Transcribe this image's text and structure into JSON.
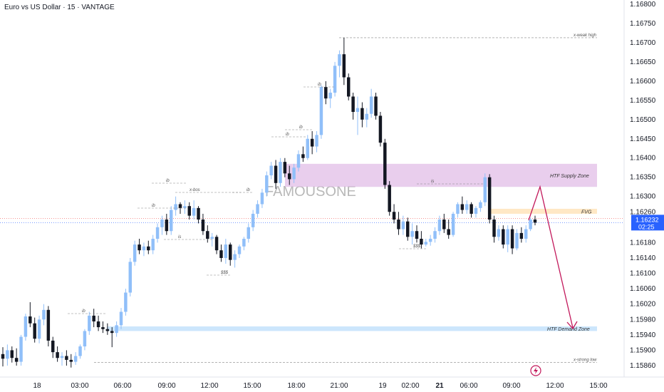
{
  "chart_data": {
    "type": "candlestick",
    "title": "Euro vs US Dollar · 15 · VANTAGE",
    "watermark": "FAMOUSONE",
    "y_ticks": [
      "1.16800",
      "1.16750",
      "1.16700",
      "1.16650",
      "1.16600",
      "1.16550",
      "1.16500",
      "1.16450",
      "1.16400",
      "1.16350",
      "1.16300",
      "1.16260",
      "1.16180",
      "1.16140",
      "1.16100",
      "1.16060",
      "1.16020",
      "1.15980",
      "1.15940",
      "1.15900",
      "1.15860"
    ],
    "x_ticks": [
      {
        "label": "18",
        "bold": false
      },
      {
        "label": "03:00",
        "bold": false
      },
      {
        "label": "06:00",
        "bold": false
      },
      {
        "label": "09:00",
        "bold": false
      },
      {
        "label": "12:00",
        "bold": false
      },
      {
        "label": "15:00",
        "bold": false
      },
      {
        "label": "18:00",
        "bold": false
      },
      {
        "label": "21:00",
        "bold": false
      },
      {
        "label": "19",
        "bold": false
      },
      {
        "label": "02:00",
        "bold": false
      },
      {
        "label": "21",
        "bold": true
      },
      {
        "label": "06:00",
        "bold": false
      },
      {
        "label": "09:00",
        "bold": false
      },
      {
        "label": "12:00",
        "bold": false
      },
      {
        "label": "15:00",
        "bold": false
      }
    ],
    "current_price": {
      "price": "1.16232",
      "countdown": "02:25",
      "value": 1.16232
    },
    "zones": [
      {
        "label": "HTF Supply Zone",
        "from": 1.16325,
        "to": 1.16385,
        "color": "#e1bee7"
      },
      {
        "label": "FVG",
        "from": 1.16255,
        "to": 1.16268,
        "color": "#ffe0b2"
      },
      {
        "label": "HTF Demand Zone",
        "from": 1.1595,
        "to": 1.15962,
        "color": "#bbdefb"
      }
    ],
    "levels": [
      {
        "label": "x-weak high",
        "value": 1.16713
      },
      {
        "label": "x-strong low",
        "value": 1.15868
      }
    ],
    "annotations": [
      "x-bos",
      "ib",
      "ib",
      "ib",
      "ib",
      "ib",
      "ib",
      "ib",
      "is",
      "is",
      "$$$",
      "$$$"
    ],
    "candles": [
      [
        1.1589,
        1.15908,
        1.15858,
        1.15878
      ],
      [
        1.15878,
        1.15915,
        1.1586,
        1.159
      ],
      [
        1.159,
        1.1591,
        1.15868,
        1.1588
      ],
      [
        1.1588,
        1.15905,
        1.1586,
        1.1587
      ],
      [
        1.1587,
        1.1594,
        1.1586,
        1.15935
      ],
      [
        1.15935,
        1.15995,
        1.15925,
        1.15988
      ],
      [
        1.15988,
        1.16025,
        1.1596,
        1.1597
      ],
      [
        1.1597,
        1.15985,
        1.1592,
        1.1593
      ],
      [
        1.1593,
        1.1599,
        1.15918,
        1.1598
      ],
      [
        1.1598,
        1.1602,
        1.15965,
        1.16005
      ],
      [
        1.16005,
        1.16015,
        1.1591,
        1.15925
      ],
      [
        1.15925,
        1.15935,
        1.1588,
        1.15895
      ],
      [
        1.15895,
        1.1591,
        1.1587,
        1.1588
      ],
      [
        1.1588,
        1.15895,
        1.1586,
        1.15885
      ],
      [
        1.15885,
        1.159,
        1.1586,
        1.15875
      ],
      [
        1.15875,
        1.1589,
        1.15855,
        1.1587
      ],
      [
        1.1587,
        1.15895,
        1.15862,
        1.15885
      ],
      [
        1.15885,
        1.15915,
        1.15878,
        1.1591
      ],
      [
        1.1591,
        1.15955,
        1.159,
        1.1595
      ],
      [
        1.1595,
        1.16,
        1.1594,
        1.1599
      ],
      [
        1.1599,
        1.16008,
        1.1596,
        1.15975
      ],
      [
        1.15975,
        1.1599,
        1.1595,
        1.1596
      ],
      [
        1.1596,
        1.15975,
        1.15945,
        1.15955
      ],
      [
        1.15955,
        1.1597,
        1.1594,
        1.1595
      ],
      [
        1.1595,
        1.1596,
        1.15908,
        1.15945
      ],
      [
        1.15945,
        1.15975,
        1.15935,
        1.15965
      ],
      [
        1.15965,
        1.1601,
        1.15955,
        1.16
      ],
      [
        1.16,
        1.1606,
        1.1599,
        1.1605
      ],
      [
        1.1605,
        1.1614,
        1.1604,
        1.1613
      ],
      [
        1.1613,
        1.16185,
        1.1612,
        1.16175
      ],
      [
        1.16175,
        1.1619,
        1.1615,
        1.1616
      ],
      [
        1.1616,
        1.1618,
        1.16145,
        1.1617
      ],
      [
        1.1617,
        1.16185,
        1.1615,
        1.1616
      ],
      [
        1.1616,
        1.162,
        1.1615,
        1.1619
      ],
      [
        1.1619,
        1.1623,
        1.1618,
        1.1622
      ],
      [
        1.1622,
        1.1625,
        1.162,
        1.1624
      ],
      [
        1.1624,
        1.16255,
        1.162,
        1.1621
      ],
      [
        1.1621,
        1.16275,
        1.162,
        1.16265
      ],
      [
        1.16265,
        1.163,
        1.1625,
        1.1628
      ],
      [
        1.1628,
        1.16285,
        1.16255,
        1.1627
      ],
      [
        1.1627,
        1.1629,
        1.16255,
        1.16275
      ],
      [
        1.16275,
        1.16285,
        1.1624,
        1.1625
      ],
      [
        1.1625,
        1.1629,
        1.1624,
        1.1627
      ],
      [
        1.1627,
        1.16275,
        1.1623,
        1.1624
      ],
      [
        1.1624,
        1.16255,
        1.162,
        1.1621
      ],
      [
        1.1621,
        1.16225,
        1.1618,
        1.1619
      ],
      [
        1.1619,
        1.16205,
        1.1617,
        1.16195
      ],
      [
        1.16195,
        1.162,
        1.1615,
        1.1616
      ],
      [
        1.1616,
        1.16175,
        1.1613,
        1.1614
      ],
      [
        1.1614,
        1.1619,
        1.16125,
        1.16175
      ],
      [
        1.16175,
        1.1618,
        1.1612,
        1.16135
      ],
      [
        1.16135,
        1.1616,
        1.16115,
        1.1615
      ],
      [
        1.1615,
        1.16175,
        1.1614,
        1.1617
      ],
      [
        1.1617,
        1.16195,
        1.1616,
        1.1619
      ],
      [
        1.1619,
        1.1623,
        1.1618,
        1.1622
      ],
      [
        1.1622,
        1.16265,
        1.1621,
        1.16255
      ],
      [
        1.16255,
        1.1629,
        1.16245,
        1.1628
      ],
      [
        1.1628,
        1.1632,
        1.1627,
        1.1631
      ],
      [
        1.1631,
        1.16365,
        1.163,
        1.16355
      ],
      [
        1.16355,
        1.1639,
        1.16345,
        1.1638
      ],
      [
        1.1638,
        1.16395,
        1.1632,
        1.16335
      ],
      [
        1.16335,
        1.164,
        1.16325,
        1.1639
      ],
      [
        1.1639,
        1.164,
        1.1635,
        1.1636
      ],
      [
        1.1636,
        1.1638,
        1.1633,
        1.16345
      ],
      [
        1.16345,
        1.16385,
        1.16335,
        1.16375
      ],
      [
        1.16375,
        1.1642,
        1.16365,
        1.1641
      ],
      [
        1.1641,
        1.1643,
        1.1639,
        1.164
      ],
      [
        1.164,
        1.1646,
        1.16395,
        1.1645
      ],
      [
        1.1645,
        1.1647,
        1.1641,
        1.1643
      ],
      [
        1.1643,
        1.1647,
        1.16415,
        1.1646
      ],
      [
        1.1646,
        1.1659,
        1.1645,
        1.16585
      ],
      [
        1.16585,
        1.166,
        1.1654,
        1.16555
      ],
      [
        1.16555,
        1.1658,
        1.1653,
        1.1657
      ],
      [
        1.1657,
        1.1665,
        1.1656,
        1.1664
      ],
      [
        1.1664,
        1.1668,
        1.1661,
        1.1667
      ],
      [
        1.1667,
        1.16713,
        1.1659,
        1.1661
      ],
      [
        1.1661,
        1.1662,
        1.1655,
        1.1656
      ],
      [
        1.1656,
        1.1657,
        1.165,
        1.1652
      ],
      [
        1.1652,
        1.1656,
        1.1646,
        1.1653
      ],
      [
        1.1653,
        1.16545,
        1.1648,
        1.165
      ],
      [
        1.165,
        1.1653,
        1.1648,
        1.16515
      ],
      [
        1.16515,
        1.1658,
        1.16505,
        1.1656
      ],
      [
        1.1656,
        1.1657,
        1.165,
        1.1651
      ],
      [
        1.1651,
        1.1652,
        1.1643,
        1.1644
      ],
      [
        1.1644,
        1.1645,
        1.1632,
        1.1633
      ],
      [
        1.1633,
        1.1634,
        1.1625,
        1.1626
      ],
      [
        1.1626,
        1.1628,
        1.1623,
        1.1624
      ],
      [
        1.1624,
        1.1626,
        1.162,
        1.16215
      ],
      [
        1.16215,
        1.1625,
        1.162,
        1.16235
      ],
      [
        1.16235,
        1.16245,
        1.16185,
        1.16195
      ],
      [
        1.16195,
        1.1623,
        1.16175,
        1.1621
      ],
      [
        1.1621,
        1.16225,
        1.1618,
        1.1619
      ],
      [
        1.1619,
        1.1621,
        1.16165,
        1.16175
      ],
      [
        1.16175,
        1.1619,
        1.1617,
        1.16182
      ],
      [
        1.16182,
        1.162,
        1.16172,
        1.1619
      ],
      [
        1.1619,
        1.1622,
        1.1618,
        1.1621
      ],
      [
        1.1621,
        1.1625,
        1.162,
        1.1624
      ],
      [
        1.1624,
        1.16255,
        1.16205,
        1.16215
      ],
      [
        1.16215,
        1.1624,
        1.1619,
        1.162
      ],
      [
        1.162,
        1.1626,
        1.16195,
        1.16255
      ],
      [
        1.16255,
        1.16285,
        1.16245,
        1.1628
      ],
      [
        1.1628,
        1.163,
        1.16255,
        1.16265
      ],
      [
        1.16265,
        1.1629,
        1.16255,
        1.1628
      ],
      [
        1.1628,
        1.16285,
        1.16245,
        1.16255
      ],
      [
        1.16255,
        1.16275,
        1.16245,
        1.1627
      ],
      [
        1.1627,
        1.1629,
        1.1626,
        1.16285
      ],
      [
        1.16285,
        1.1636,
        1.16275,
        1.1635
      ],
      [
        1.1635,
        1.16358,
        1.1623,
        1.1624
      ],
      [
        1.1624,
        1.1625,
        1.1618,
        1.16195
      ],
      [
        1.16195,
        1.16225,
        1.16185,
        1.16215
      ],
      [
        1.16215,
        1.16225,
        1.16165,
        1.16175
      ],
      [
        1.16175,
        1.16225,
        1.16155,
        1.16215
      ],
      [
        1.16215,
        1.16225,
        1.1615,
        1.16165
      ],
      [
        1.16165,
        1.16215,
        1.1616,
        1.16205
      ],
      [
        1.16205,
        1.1622,
        1.1618,
        1.1619
      ],
      [
        1.1619,
        1.16225,
        1.1618,
        1.16215
      ],
      [
        1.16215,
        1.16245,
        1.1621,
        1.1624
      ],
      [
        1.1624,
        1.1625,
        1.16225,
        1.16232
      ]
    ]
  }
}
